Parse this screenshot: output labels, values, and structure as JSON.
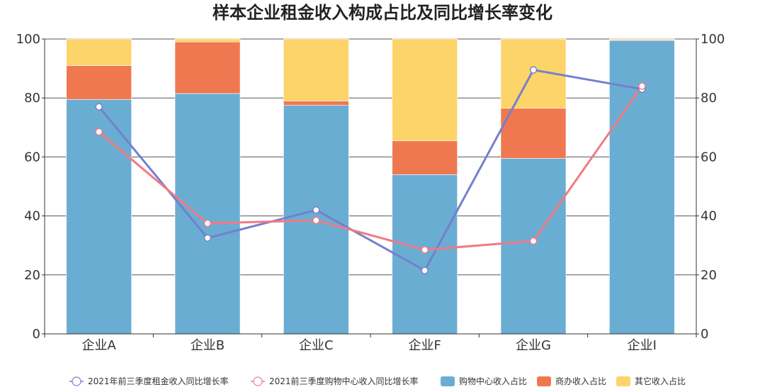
{
  "chart_data": {
    "type": "bar",
    "title": "样本企业租金收入构成占比及同比增长率变化",
    "categories": [
      "企业A",
      "企业B",
      "企业C",
      "企业F",
      "企业G",
      "企业I"
    ],
    "ylim": [
      0,
      100
    ],
    "y_ticks": [
      "0",
      "20",
      "40",
      "60",
      "80",
      "100"
    ],
    "y2lim": [
      0,
      100
    ],
    "y2_ticks": [
      "0",
      "20",
      "40",
      "60",
      "80",
      "100"
    ],
    "grid": true,
    "legend_position": "bottom",
    "bar_series": [
      {
        "name": "购物中心收入占比",
        "color": "#6aadd3",
        "values": [
          79.5,
          81.5,
          77.5,
          54.0,
          59.5,
          99.5
        ]
      },
      {
        "name": "商办收入占比",
        "color": "#f07850",
        "values": [
          11.5,
          17.5,
          1.5,
          11.5,
          17.0,
          0.2
        ]
      },
      {
        "name": "其它收入占比",
        "color": "#fdd46a",
        "values": [
          9.0,
          1.0,
          21.0,
          34.5,
          23.5,
          0.3
        ]
      }
    ],
    "line_series": [
      {
        "name": "2021年前三季度租金收入同比增长率",
        "color": "#7480cc",
        "values": [
          77,
          32.5,
          42,
          21.5,
          89.5,
          83
        ]
      },
      {
        "name": "2021前三季度购物中心收入同比增长率",
        "color": "#f07a84",
        "values": [
          68.5,
          37.5,
          38.5,
          28.5,
          31.5,
          84
        ]
      }
    ]
  }
}
